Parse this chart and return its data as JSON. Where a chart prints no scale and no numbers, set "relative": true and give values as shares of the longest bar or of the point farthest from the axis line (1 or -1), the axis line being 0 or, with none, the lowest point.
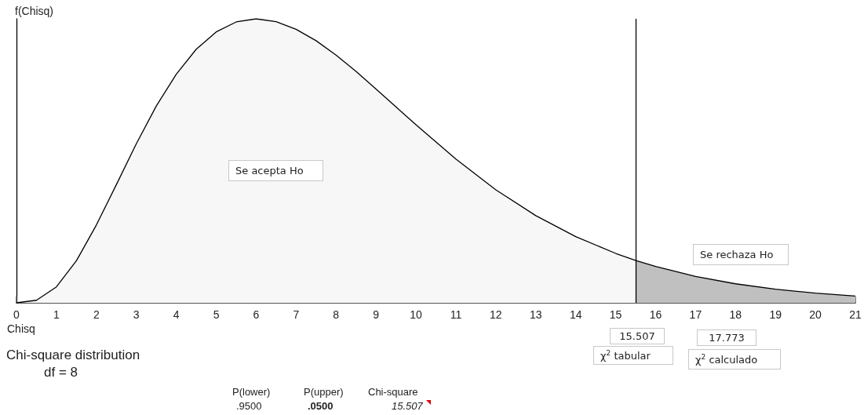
{
  "chart_data": {
    "type": "area",
    "relative": true,
    "xlabel": "Chisq",
    "ylabel": "f(Chisq)",
    "xlim": [
      0,
      21
    ],
    "xticks": [
      0,
      1,
      2,
      3,
      4,
      5,
      6,
      7,
      8,
      9,
      10,
      11,
      12,
      13,
      14,
      15,
      16,
      17,
      18,
      19,
      20,
      21
    ],
    "grid": false,
    "marker": "none",
    "series": [
      {
        "color": "#f7f7f7",
        "x": [
          0,
          0.5,
          1,
          1.5,
          2,
          2.5,
          3,
          3.5,
          4,
          4.5,
          5,
          5.5,
          6,
          6.5,
          7,
          7.5,
          8,
          8.5,
          9,
          9.5,
          10,
          11,
          12,
          13,
          14,
          15,
          15.507
        ],
        "values": [
          0,
          0.009,
          0.056,
          0.148,
          0.274,
          0.416,
          0.56,
          0.693,
          0.805,
          0.893,
          0.954,
          0.989,
          1,
          0.99,
          0.963,
          0.923,
          0.872,
          0.815,
          0.753,
          0.69,
          0.627,
          0.506,
          0.398,
          0.307,
          0.233,
          0.174,
          0.149
        ]
      },
      {
        "color": "#c0c0c0",
        "x": [
          15.507,
          16,
          17,
          18,
          19,
          20,
          21
        ],
        "values": [
          0.149,
          0.128,
          0.093,
          0.067,
          0.048,
          0.034,
          0.024
        ]
      }
    ],
    "ref_lines": [
      {
        "axis": "x",
        "value": 15.507,
        "color": "#000000"
      }
    ],
    "annotations": [
      "Se acepta Ho",
      "Se rechaza Ho",
      "15.507",
      "χ$^{2}$ tabular",
      "17.773",
      "χ$^{2}$ calculado",
      "Chi-square distribution",
      "df =  8",
      "P(lower)",
      ".9500",
      "P(upper)",
      ".0500",
      "Chi-square",
      "15.507"
    ]
  }
}
